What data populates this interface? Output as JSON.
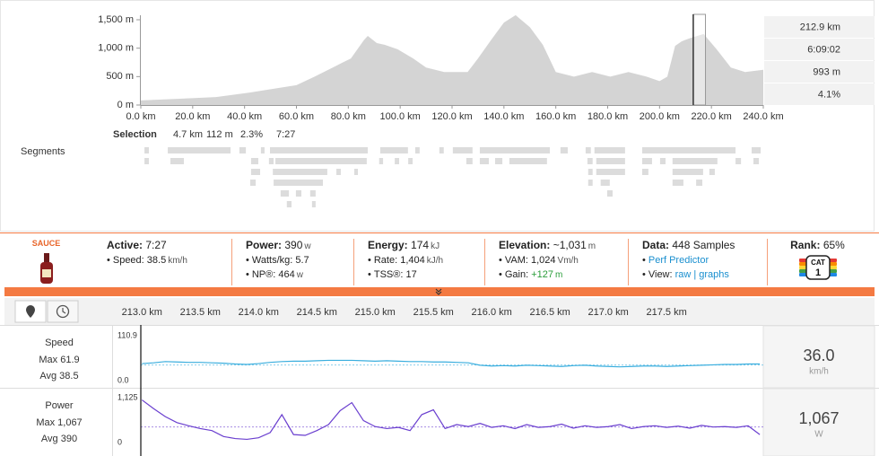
{
  "elevation": {
    "type": "area",
    "color": "#d4d4d4",
    "x": [
      0,
      15,
      29,
      42,
      49,
      60,
      67,
      74,
      81,
      86,
      87.5,
      91,
      94,
      99,
      105,
      110,
      117,
      126,
      130,
      135,
      140,
      144.5,
      150,
      155,
      160,
      167,
      174,
      181,
      188,
      195,
      200,
      203,
      206,
      208.5,
      212,
      217,
      222,
      227.5,
      233,
      240
    ],
    "values": [
      80,
      110,
      140,
      220,
      270,
      350,
      500,
      660,
      820,
      1140,
      1215,
      1090,
      1060,
      980,
      820,
      660,
      580,
      580,
      820,
      1140,
      1450,
      1580,
      1370,
      1060,
      580,
      500,
      580,
      500,
      580,
      500,
      420,
      500,
      1040,
      1120,
      1180,
      1250,
      980,
      660,
      580,
      620
    ],
    "xlim": [
      0,
      240
    ],
    "xticks": [
      {
        "value": 0,
        "label": "0.0 km"
      },
      {
        "value": 20,
        "label": "20.0 km"
      },
      {
        "value": 40,
        "label": "40.0 km"
      },
      {
        "value": 60,
        "label": "60.0 km"
      },
      {
        "value": 80,
        "label": "80.0 km"
      },
      {
        "value": 100,
        "label": "100.0 km"
      },
      {
        "value": 120,
        "label": "120.0 km"
      },
      {
        "value": 140,
        "label": "140.0 km"
      },
      {
        "value": 160,
        "label": "160.0 km"
      },
      {
        "value": 180,
        "label": "180.0 km"
      },
      {
        "value": 200,
        "label": "200.0 km"
      },
      {
        "value": 220,
        "label": "220.0 km"
      },
      {
        "value": 240,
        "label": "240.0 km"
      }
    ],
    "ylim": [
      0,
      1500
    ],
    "yticks": [
      {
        "value": 0,
        "label": "0 m"
      },
      {
        "value": 500,
        "label": "500 m"
      },
      {
        "value": 1000,
        "label": "1,000 m"
      },
      {
        "value": 1500,
        "label": "1,500 m"
      }
    ],
    "selection": [
      213.0,
      217.7
    ],
    "readout": [
      "212.9 km",
      "6:09:02",
      "993 m",
      "4.1%"
    ]
  },
  "selection_stats": {
    "label": "Selection",
    "values": [
      "4.7 km",
      "112 m",
      "2.3%",
      "7:27"
    ]
  },
  "segments": {
    "label": "Segments",
    "rows": [
      [
        [
          1.4,
          3.1
        ],
        [
          10.4,
          34.6
        ],
        [
          38.0,
          40.5
        ],
        [
          46.3,
          47.7
        ],
        [
          49.8,
          87.5
        ],
        [
          92.3,
          103.0
        ],
        [
          105.8,
          107.5
        ],
        [
          115.1,
          116.8
        ],
        [
          120.3,
          127.9
        ],
        [
          130.7,
          157.7
        ],
        [
          161.8,
          164.6
        ],
        [
          171.5,
          173.5
        ],
        [
          174.9,
          186.7
        ],
        [
          193.3,
          229.3
        ],
        [
          235.5,
          239.0
        ]
      ],
      [
        [
          1.4,
          3.1
        ],
        [
          11.4,
          16.6
        ],
        [
          42.5,
          45.3
        ],
        [
          49.4,
          51.2
        ],
        [
          51.9,
          87.1
        ],
        [
          91.9,
          93.4
        ],
        [
          97.9,
          99.6
        ],
        [
          103.1,
          104.8
        ],
        [
          125.5,
          127.9
        ],
        [
          130.7,
          134.2
        ],
        [
          136.6,
          139.4
        ],
        [
          142.1,
          156.6
        ],
        [
          172.2,
          174.2
        ],
        [
          175.6,
          186.7
        ],
        [
          193.3,
          197.1
        ],
        [
          200.2,
          202.3
        ],
        [
          205.0,
          222.3
        ],
        [
          229.3,
          231.4
        ],
        [
          236.2,
          238.3
        ]
      ],
      [
        [
          42.5,
          46.0
        ],
        [
          50.9,
          71.9
        ],
        [
          75.4,
          77.1
        ],
        [
          82.3,
          83.7
        ],
        [
          172.5,
          174.2
        ],
        [
          175.6,
          186.7
        ],
        [
          193.3,
          195.7
        ],
        [
          205.0,
          216.8
        ],
        [
          219.2,
          221.3
        ]
      ],
      [
        [
          42.2,
          44.3
        ],
        [
          51.2,
          70.2
        ],
        [
          172.5,
          174.2
        ],
        [
          177.3,
          180.8
        ],
        [
          205.0,
          209.2
        ],
        [
          214.1,
          216.5
        ]
      ],
      [
        [
          53.9,
          57.1
        ],
        [
          59.8,
          61.9
        ],
        [
          65.3,
          67.4
        ],
        [
          179.8,
          181.9
        ]
      ],
      [
        [
          56.3,
          58.1
        ],
        [
          66.0,
          67.4
        ]
      ]
    ]
  },
  "stats": {
    "logo": "SAUCE",
    "columns": [
      {
        "title": "Active:",
        "value": "7:27",
        "items": [
          {
            "label": "Speed:",
            "value": "38.5",
            "unit": "km/h"
          }
        ]
      },
      {
        "title": "Power:",
        "value": "390",
        "unit": "w",
        "items": [
          {
            "label": "Watts/kg:",
            "value": "5.7"
          },
          {
            "label": "NP®:",
            "value": "464",
            "unit": "w"
          }
        ]
      },
      {
        "title": "Energy:",
        "value": "174",
        "unit": "kJ",
        "items": [
          {
            "label": "Rate:",
            "value": "1,404",
            "unit": "kJ/h"
          },
          {
            "label": "TSS®:",
            "value": "17"
          }
        ]
      },
      {
        "title": "Elevation:",
        "value": "~1,031",
        "unit": "m",
        "items": [
          {
            "label": "VAM:",
            "value": "1,024",
            "unit": "Vm/h"
          },
          {
            "label": "Gain:",
            "value": "+127",
            "unit": "m",
            "color": "#2a9d3a"
          }
        ]
      },
      {
        "title": "Data:",
        "value": "448 Samples",
        "items": [
          {
            "links": [
              "Perf Predictor"
            ]
          },
          {
            "label": "View:",
            "links": [
              "raw",
              "graphs"
            ],
            "separator": "|"
          }
        ]
      },
      {
        "title": "Rank:",
        "value": "65%",
        "badge": [
          "CAT",
          "1"
        ]
      }
    ]
  },
  "streams": {
    "x": [
      213.0,
      213.1,
      213.2,
      213.3,
      213.4,
      213.5,
      213.6,
      213.7,
      213.8,
      213.9,
      214.0,
      214.1,
      214.2,
      214.3,
      214.4,
      214.5,
      214.6,
      214.7,
      214.8,
      214.9,
      215.0,
      215.1,
      215.2,
      215.3,
      215.4,
      215.5,
      215.6,
      215.7,
      215.8,
      215.9,
      216.0,
      216.1,
      216.2,
      216.3,
      216.4,
      216.5,
      216.6,
      216.7,
      216.8,
      216.9,
      217.0,
      217.1,
      217.2,
      217.3,
      217.4,
      217.5,
      217.6,
      217.7,
      217.8,
      217.9,
      218.0,
      218.1,
      218.2,
      218.3
    ],
    "xlim": [
      212.99,
      218.33
    ],
    "xticks": [
      {
        "value": 213.0,
        "label": "213.0 km"
      },
      {
        "value": 213.5,
        "label": "213.5 km"
      },
      {
        "value": 214.0,
        "label": "214.0 km"
      },
      {
        "value": 214.5,
        "label": "214.5 km"
      },
      {
        "value": 215.0,
        "label": "215.0 km"
      },
      {
        "value": 215.5,
        "label": "215.5 km"
      },
      {
        "value": 216.0,
        "label": "216.0 km"
      },
      {
        "value": 216.5,
        "label": "216.5 km"
      },
      {
        "value": 217.0,
        "label": "217.0 km"
      },
      {
        "value": 217.5,
        "label": "217.5 km"
      }
    ],
    "rows": [
      {
        "type": "line",
        "name": "Speed",
        "max_label": "Max 61.9",
        "avg_label": "Avg 38.5",
        "avg": 38.5,
        "color": "#3aaede",
        "values": [
          42,
          44,
          47,
          46,
          45,
          45,
          44,
          43,
          41,
          40,
          42,
          45,
          47,
          48,
          48,
          49,
          50,
          50,
          50,
          49,
          48,
          49,
          48,
          47,
          47,
          46,
          46,
          45,
          44,
          38,
          36,
          37,
          36,
          38,
          37,
          36,
          35,
          37,
          38,
          36,
          35,
          34,
          35,
          36,
          36,
          35,
          36,
          37,
          38,
          39,
          40,
          40,
          41,
          41
        ],
        "ylim": [
          0,
          110.9
        ],
        "yticks": [
          {
            "value": 0,
            "label": "0.0"
          },
          110.9
        ],
        "readout": "36.0",
        "unit": "km/h"
      },
      {
        "type": "line",
        "name": "Power",
        "max_label": "Max 1,067",
        "avg_label": "Avg 390",
        "avg": 390,
        "color": "#6a3fcf",
        "values": [
          1067,
          850,
          650,
          500,
          420,
          350,
          300,
          150,
          100,
          80,
          120,
          250,
          700,
          200,
          180,
          300,
          450,
          800,
          1000,
          550,
          400,
          350,
          380,
          300,
          700,
          820,
          350,
          450,
          400,
          480,
          380,
          420,
          350,
          450,
          380,
          400,
          460,
          360,
          420,
          380,
          400,
          450,
          350,
          400,
          420,
          380,
          410,
          360,
          430,
          390,
          400,
          380,
          420,
          200
        ],
        "ylim": [
          0,
          1125
        ],
        "yticks": [
          0,
          {
            "value": 1125,
            "label": "1,125"
          }
        ],
        "readout": "1,067",
        "unit": "W"
      }
    ]
  }
}
